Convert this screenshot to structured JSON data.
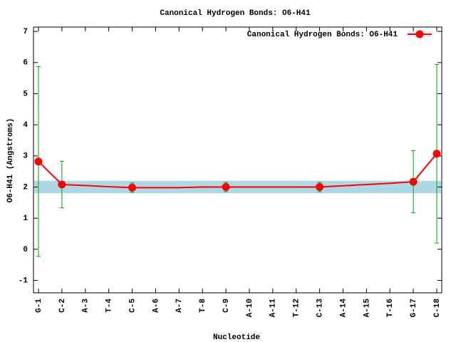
{
  "chart_data": {
    "type": "line",
    "title": "Canonical Hydrogen Bonds: O6-H41",
    "x_label": "Nucleotide",
    "y_label": "O6-H41 (Angstroms)",
    "categories": [
      "G-1",
      "C-2",
      "A-3",
      "T-4",
      "C-5",
      "A-6",
      "A-7",
      "T-8",
      "C-9",
      "A-10",
      "A-11",
      "T-12",
      "C-13",
      "A-14",
      "A-15",
      "T-16",
      "G-17",
      "C-18"
    ],
    "series": [
      {
        "name": "Canonical Hydrogen Bonds: O6-H41",
        "color": "#ff0000",
        "error_color": "#00aa00",
        "values": [
          2.82,
          2.08,
          2.05,
          2.01,
          1.98,
          1.98,
          1.98,
          2.0,
          2.0,
          2.0,
          2.0,
          2.0,
          2.0,
          2.04,
          2.08,
          2.12,
          2.17,
          3.07
        ],
        "errors": [
          3.05,
          0.75,
          null,
          null,
          0.15,
          null,
          null,
          null,
          0.15,
          null,
          null,
          null,
          0.15,
          null,
          null,
          null,
          1.0,
          2.87
        ]
      }
    ],
    "reference_band": [
      1.8,
      2.2
    ],
    "band_color": "#add8e6",
    "ylim": [
      -1.4,
      7.14
    ],
    "yticks": [
      -1,
      0,
      1,
      2,
      3,
      4,
      5,
      6,
      7
    ],
    "legend": "top-right"
  }
}
